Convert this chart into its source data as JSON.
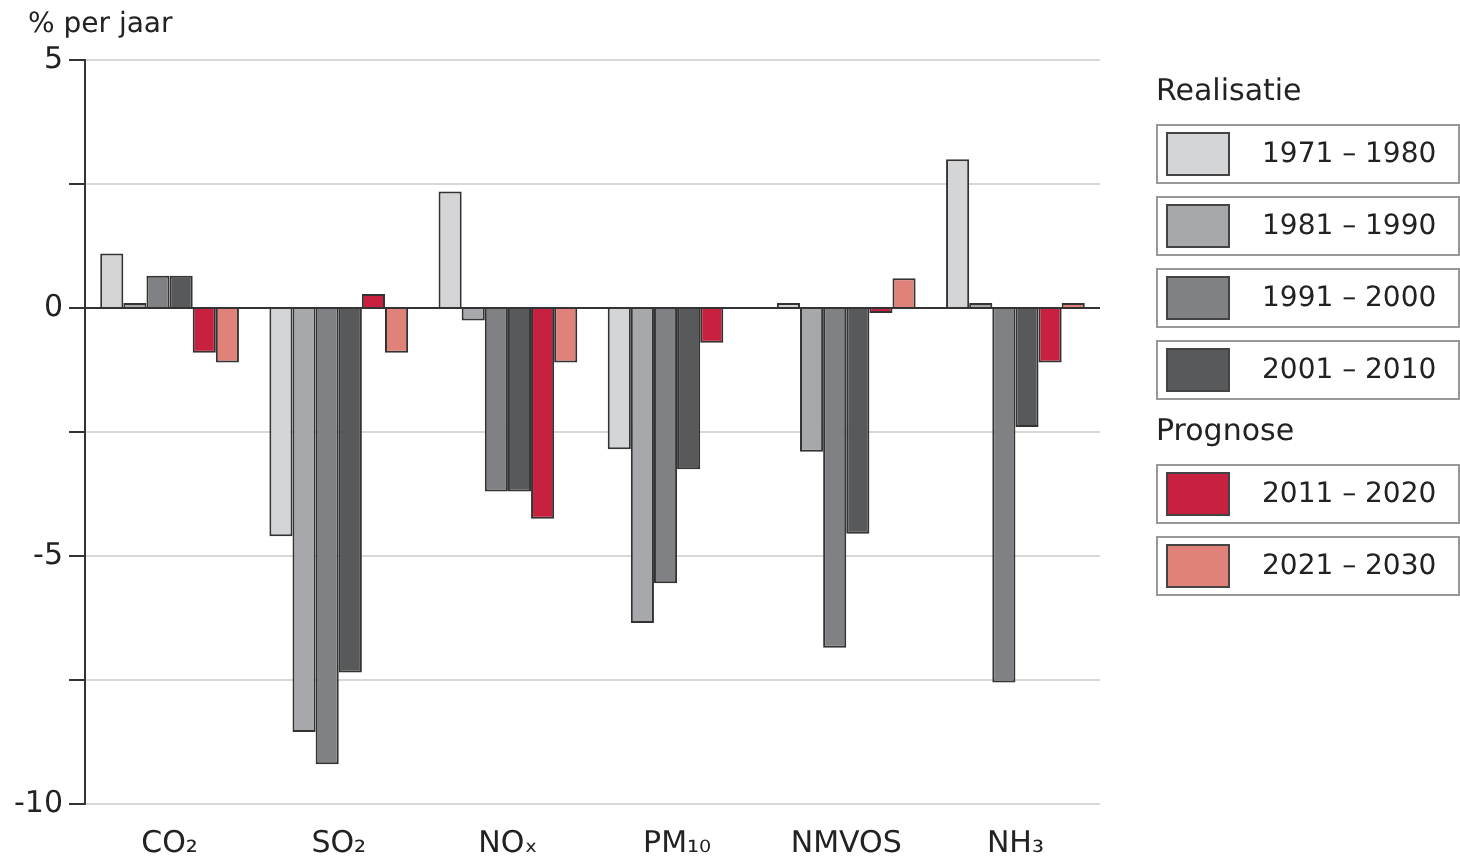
{
  "chart_data": {
    "type": "bar",
    "ylabel": "% per jaar",
    "legend_title": "Realisatie",
    "annotations": [
      "Prognose"
    ],
    "categories": [
      "CO₂",
      "SO₂",
      "NOₓ",
      "PM₁₀",
      "NMVOS",
      "NH₃"
    ],
    "series": [
      {
        "name": "1971 – 1980",
        "color": "#d4d5d7",
        "values": [
          1.1,
          -4.6,
          2.35,
          -2.85,
          0.1,
          3.0
        ]
      },
      {
        "name": "1981 – 1990",
        "color": "#a7a8ab",
        "values": [
          0.1,
          -8.55,
          -0.25,
          -6.35,
          -2.9,
          0.1
        ]
      },
      {
        "name": "1991 – 2000",
        "color": "#808185",
        "values": [
          0.65,
          -9.2,
          -3.7,
          -5.55,
          -6.85,
          -7.55
        ]
      },
      {
        "name": "2001 – 2010",
        "color": "#58595b",
        "values": [
          0.65,
          -7.35,
          -3.7,
          -3.25,
          -4.55,
          -2.4
        ]
      },
      {
        "name": "2011 – 2020",
        "color": "#c8203f",
        "values": [
          -0.9,
          0.28,
          -4.25,
          -0.7,
          -0.1,
          -1.1
        ]
      },
      {
        "name": "2021 – 2030",
        "color": "#e0827a",
        "values": [
          -1.1,
          -0.9,
          -1.1,
          0,
          0.6,
          0.1
        ]
      }
    ],
    "ylim": [
      -10,
      5
    ],
    "yticks": [
      -10,
      {
        "value": -7.5,
        "label": null
      },
      -5,
      {
        "value": -2.5,
        "label": null
      },
      0,
      {
        "value": 2.5,
        "label": null
      },
      5
    ],
    "grid": "y",
    "legend": "right"
  }
}
